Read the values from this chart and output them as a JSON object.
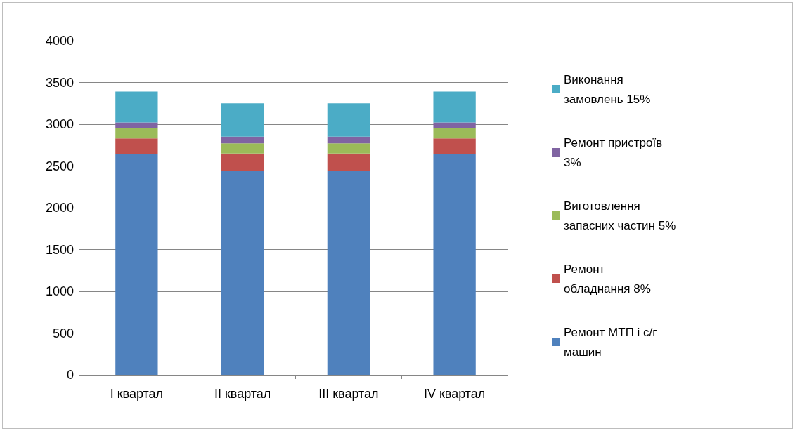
{
  "chart_data": {
    "type": "bar",
    "stacked": true,
    "categories": [
      "I квартал",
      "II квартал",
      "III квартал",
      "IV квартал"
    ],
    "series": [
      {
        "name": "Ремонт МТП і с/г машин",
        "color": "#4f81bd",
        "values": [
          2640,
          2440,
          2440,
          2640
        ]
      },
      {
        "name": "Ремонт обладнання 8%",
        "color": "#c0504d",
        "values": [
          190,
          210,
          210,
          190
        ]
      },
      {
        "name": "Виготовлення запасних частин 5%",
        "color": "#9bbb59",
        "values": [
          120,
          120,
          120,
          120
        ]
      },
      {
        "name": "Ремонт пристроїв 3%",
        "color": "#8064a2",
        "values": [
          70,
          80,
          80,
          70
        ]
      },
      {
        "name": "Виконання замовлень 15%",
        "color": "#4bacc6",
        "values": [
          370,
          400,
          400,
          370
        ]
      }
    ],
    "ylim": [
      0,
      4000
    ],
    "yticks": [
      0,
      500,
      1000,
      1500,
      2000,
      2500,
      3000,
      3500,
      4000
    ],
    "grid": "y",
    "legend": "right"
  }
}
